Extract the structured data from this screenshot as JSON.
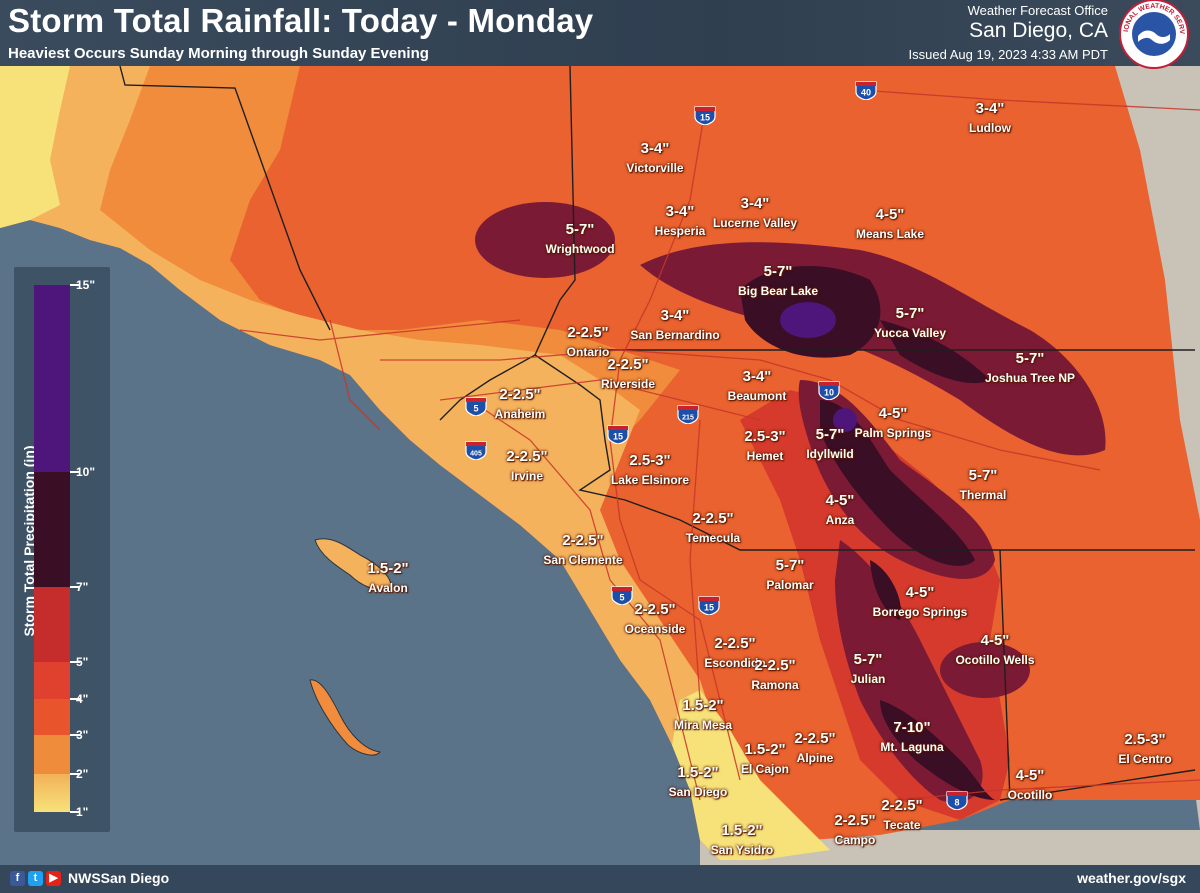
{
  "header": {
    "title": "Storm Total Rainfall: Today - Monday",
    "subtitle": "Heaviest Occurs Sunday Morning through Sunday Evening",
    "office_line": "Weather Forecast Office",
    "office_city": "San Diego, CA",
    "issued": "Issued Aug 19, 2023 4:33 AM PDT",
    "logo_text": "NATIONAL WEATHER SERVICE"
  },
  "footer": {
    "handle": "NWSSan Diego",
    "website": "weather.gov/sgx",
    "social_icons": [
      "facebook-icon",
      "twitter-icon",
      "youtube-icon"
    ]
  },
  "legend": {
    "title": "Storm Total Precipitation (in)",
    "ticks": [
      {
        "label": "15\"",
        "value": 15
      },
      {
        "label": "10\"",
        "value": 10
      },
      {
        "label": "7\"",
        "value": 7
      },
      {
        "label": "5\"",
        "value": 5
      },
      {
        "label": "4\"",
        "value": 4
      },
      {
        "label": "3\"",
        "value": 3
      },
      {
        "label": "2\"",
        "value": 2
      },
      {
        "label": "1\"",
        "value": 1
      }
    ],
    "colors": {
      "1-2": "#f7e27a",
      "2-3": "#f2b158",
      "3-4": "#ee8c3c",
      "4-5": "#e8552c",
      "5-7": "#c52d2d",
      "7-10": "#3a0e24",
      "10-15": "#4e167a"
    }
  },
  "highways": [
    "15",
    "40",
    "10",
    "5",
    "405",
    "215",
    "15",
    "5",
    "15",
    "8"
  ],
  "forecasts": [
    {
      "amount": "3-4\"",
      "place": "Victorville"
    },
    {
      "amount": "3-4\"",
      "place": "Ludlow"
    },
    {
      "amount": "3-4\"",
      "place": "Hesperia"
    },
    {
      "amount": "3-4\"",
      "place": "Lucerne Valley"
    },
    {
      "amount": "4-5\"",
      "place": "Means Lake"
    },
    {
      "amount": "5-7\"",
      "place": "Wrightwood"
    },
    {
      "amount": "5-7\"",
      "place": "Big Bear Lake"
    },
    {
      "amount": "5-7\"",
      "place": "Yucca Valley"
    },
    {
      "amount": "5-7\"",
      "place": "Joshua Tree NP"
    },
    {
      "amount": "3-4\"",
      "place": "San Bernardino"
    },
    {
      "amount": "2-2.5\"",
      "place": "Ontario"
    },
    {
      "amount": "2-2.5\"",
      "place": "Riverside"
    },
    {
      "amount": "2-2.5\"",
      "place": "Anaheim"
    },
    {
      "amount": "2-2.5\"",
      "place": "Irvine"
    },
    {
      "amount": "3-4\"",
      "place": "Beaumont"
    },
    {
      "amount": "4-5\"",
      "place": "Palm Springs"
    },
    {
      "amount": "5-7\"",
      "place": "Idyllwild"
    },
    {
      "amount": "2.5-3\"",
      "place": "Hemet"
    },
    {
      "amount": "2.5-3\"",
      "place": "Lake Elsinore"
    },
    {
      "amount": "5-7\"",
      "place": "Thermal"
    },
    {
      "amount": "4-5\"",
      "place": "Anza"
    },
    {
      "amount": "2-2.5\"",
      "place": "Temecula"
    },
    {
      "amount": "2-2.5\"",
      "place": "San Clemente"
    },
    {
      "amount": "1.5-2\"",
      "place": "Avalon"
    },
    {
      "amount": "5-7\"",
      "place": "Palomar"
    },
    {
      "amount": "4-5\"",
      "place": "Borrego Springs"
    },
    {
      "amount": "2-2.5\"",
      "place": "Oceanside"
    },
    {
      "amount": "2-2.5\"",
      "place": "Escondido"
    },
    {
      "amount": "2-2.5\"",
      "place": "Ramona"
    },
    {
      "amount": "4-5\"",
      "place": "Ocotillo Wells"
    },
    {
      "amount": "5-7\"",
      "place": "Julian"
    },
    {
      "amount": "1.5-2\"",
      "place": "Mira Mesa"
    },
    {
      "amount": "7-10\"",
      "place": "Mt. Laguna"
    },
    {
      "amount": "1.5-2\"",
      "place": "El Cajon"
    },
    {
      "amount": "2-2.5\"",
      "place": "Alpine"
    },
    {
      "amount": "2.5-3\"",
      "place": "El Centro"
    },
    {
      "amount": "1.5-2\"",
      "place": "San Diego"
    },
    {
      "amount": "4-5\"",
      "place": "Ocotillo"
    },
    {
      "amount": "2-2.5\"",
      "place": "Campo"
    },
    {
      "amount": "2-2.5\"",
      "place": "Tecate"
    },
    {
      "amount": "1.5-2\"",
      "place": "San Ysidro"
    }
  ]
}
